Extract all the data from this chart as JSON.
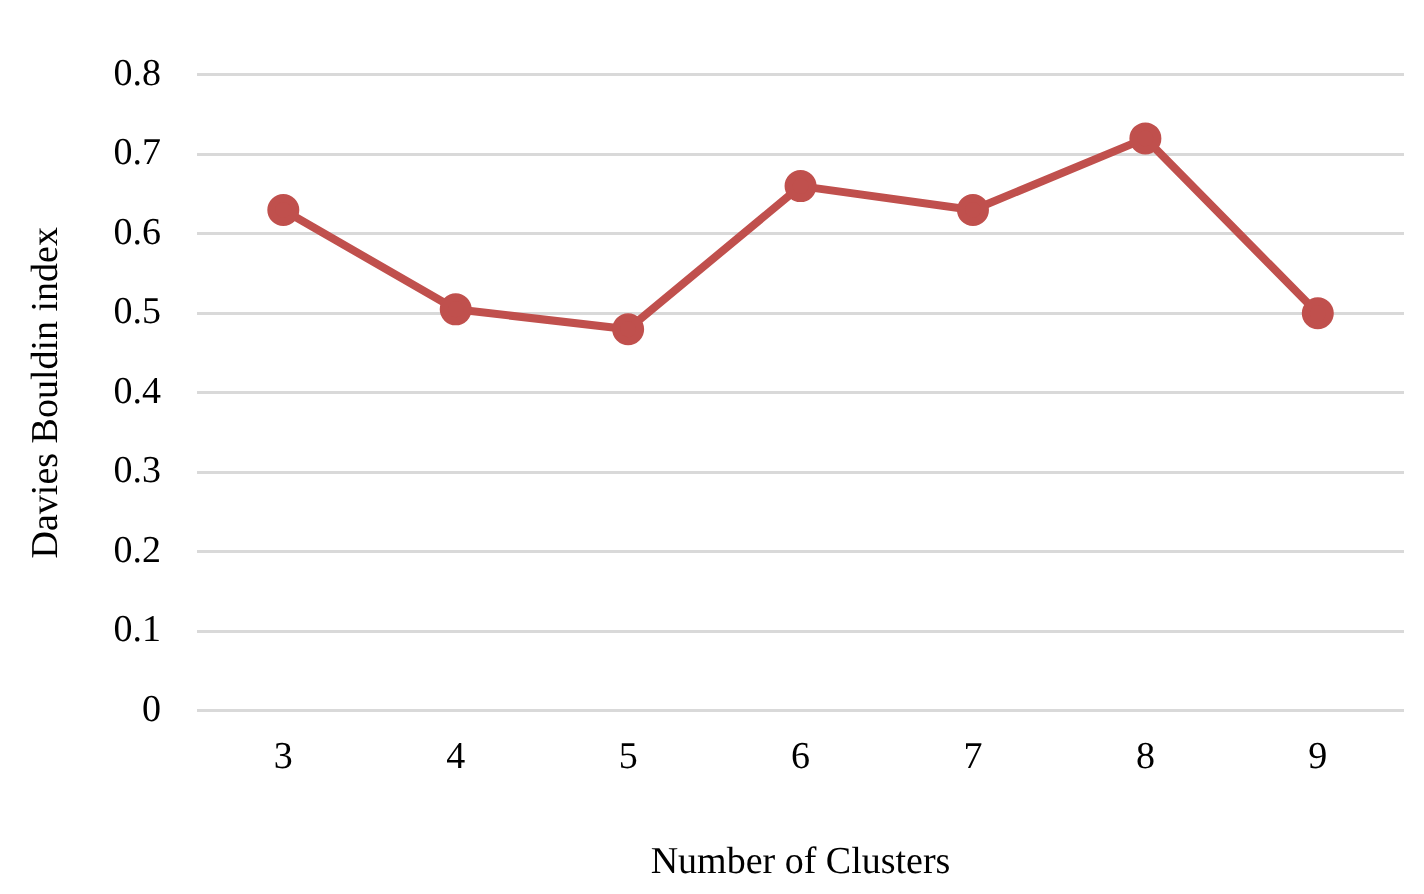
{
  "chart_data": {
    "type": "line",
    "xlabel": "Number of Clusters",
    "ylabel": "Davies Bouldin index",
    "categories": [
      "3",
      "4",
      "5",
      "6",
      "7",
      "8",
      "9"
    ],
    "series": [
      {
        "color": "#c0504d",
        "values": [
          0.63,
          0.505,
          0.48,
          0.66,
          0.63,
          0.72,
          0.5
        ]
      }
    ],
    "ylim": [
      0,
      0.8
    ],
    "yticks": [
      0,
      0.1,
      0.2,
      0.3,
      0.4,
      0.5,
      0.6,
      0.7,
      0.8
    ],
    "grid": "y",
    "marker": "circle",
    "line_style": "solid",
    "legend": false
  }
}
